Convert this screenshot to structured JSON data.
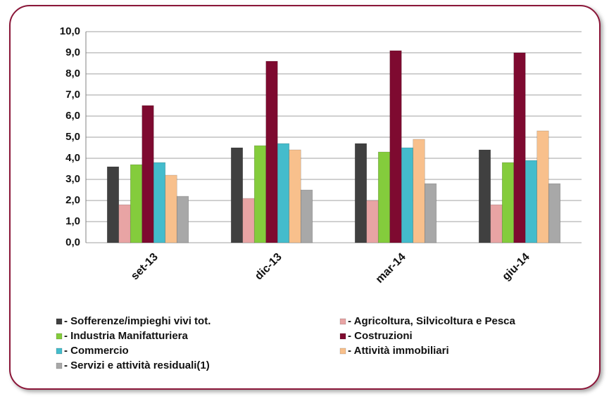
{
  "chart_data": {
    "type": "bar",
    "categories": [
      "set-13",
      "dic-13",
      "mar-14",
      "giu-14"
    ],
    "series": [
      {
        "name": "- Sofferenze/impieghi vivi tot.",
        "color": "#404040",
        "values": [
          3.6,
          4.5,
          4.7,
          4.4
        ]
      },
      {
        "name": "- Agricoltura, Silvicoltura e Pesca",
        "color": "#e8a4a4",
        "values": [
          1.8,
          2.1,
          2.0,
          1.8
        ]
      },
      {
        "name": "- Industria Manifatturiera",
        "color": "#84cc3c",
        "values": [
          3.7,
          4.6,
          4.3,
          3.8
        ]
      },
      {
        "name": "- Costruzioni",
        "color": "#7e0a30",
        "values": [
          6.5,
          8.6,
          9.1,
          9.0
        ]
      },
      {
        "name": "- Commercio",
        "color": "#44bccc",
        "values": [
          3.8,
          4.7,
          4.5,
          3.9
        ]
      },
      {
        "name": "- Attività immobiliari",
        "color": "#f8c08c",
        "values": [
          3.2,
          4.4,
          4.9,
          5.3
        ]
      },
      {
        "name": "- Servizi e attività residuali(1)",
        "color": "#a8a8a8",
        "values": [
          2.2,
          2.5,
          2.8,
          2.8
        ]
      }
    ],
    "ylim": [
      0,
      10
    ],
    "yticks": [
      {
        "value": 0,
        "label": "0,0"
      },
      {
        "value": 1,
        "label": "1,0"
      },
      {
        "value": 2,
        "label": "2,0"
      },
      {
        "value": 3,
        "label": "3,0"
      },
      {
        "value": 4,
        "label": "4,0"
      },
      {
        "value": 5,
        "label": "5,0"
      },
      {
        "value": 6,
        "label": "6,0"
      },
      {
        "value": 7,
        "label": "7,0"
      },
      {
        "value": 8,
        "label": "8,0"
      },
      {
        "value": 9,
        "label": "9,0"
      },
      {
        "value": 10,
        "label": "10,0"
      }
    ],
    "grid": true
  }
}
